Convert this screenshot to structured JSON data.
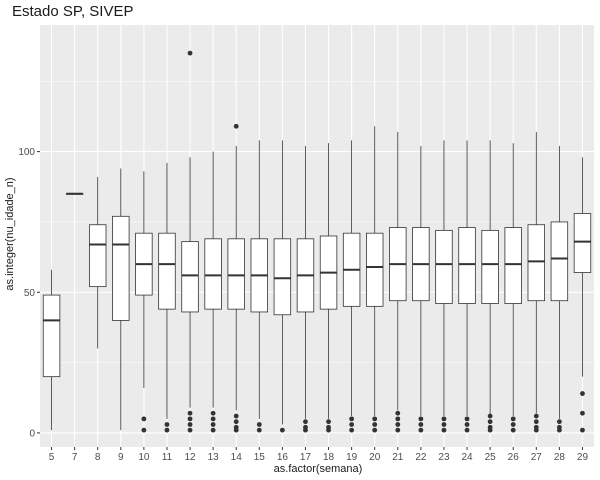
{
  "chart_data": {
    "type": "boxplot",
    "title": "Estado SP, SIVEP",
    "xlabel": "as.factor(semana)",
    "ylabel": "as.integer(nu_idade_n)",
    "ylim": [
      -5,
      145
    ],
    "y_ticks": [
      0,
      50,
      100
    ],
    "grid": true,
    "background": "#ebebeb",
    "colors": {
      "panel": "#ebebeb",
      "grid_major": "#ffffff",
      "box_fill": "#ffffff",
      "stroke": "#333333"
    },
    "categories": [
      "5",
      "7",
      "8",
      "9",
      "10",
      "11",
      "12",
      "13",
      "14",
      "15",
      "16",
      "17",
      "18",
      "19",
      "20",
      "21",
      "22",
      "23",
      "24",
      "25",
      "26",
      "27",
      "28",
      "29"
    ],
    "boxes": [
      {
        "x": "5",
        "lower": 1,
        "q1": 20,
        "median": 40,
        "q3": 49,
        "upper": 58,
        "outliers": []
      },
      {
        "x": "7",
        "lower": 85,
        "q1": 85,
        "median": 85,
        "q3": 85,
        "upper": 85,
        "outliers": []
      },
      {
        "x": "8",
        "lower": 30,
        "q1": 52,
        "median": 67,
        "q3": 74,
        "upper": 91,
        "outliers": []
      },
      {
        "x": "9",
        "lower": 1,
        "q1": 40,
        "median": 67,
        "q3": 77,
        "upper": 94,
        "outliers": []
      },
      {
        "x": "10",
        "lower": 16,
        "q1": 49,
        "median": 60,
        "q3": 71,
        "upper": 93,
        "outliers": [
          5,
          1
        ]
      },
      {
        "x": "11",
        "lower": 5,
        "q1": 44,
        "median": 60,
        "q3": 71,
        "upper": 96,
        "outliers": [
          3,
          1
        ]
      },
      {
        "x": "12",
        "lower": 9,
        "q1": 43,
        "median": 56,
        "q3": 68,
        "upper": 98,
        "outliers": [
          135,
          7,
          5,
          3,
          1
        ]
      },
      {
        "x": "13",
        "lower": 9,
        "q1": 44,
        "median": 56,
        "q3": 69,
        "upper": 100,
        "outliers": [
          7,
          5,
          3,
          1
        ]
      },
      {
        "x": "14",
        "lower": 8,
        "q1": 44,
        "median": 56,
        "q3": 69,
        "upper": 102,
        "outliers": [
          109,
          6,
          4,
          2,
          1
        ]
      },
      {
        "x": "15",
        "lower": 5,
        "q1": 43,
        "median": 56,
        "q3": 69,
        "upper": 104,
        "outliers": [
          3,
          1
        ]
      },
      {
        "x": "16",
        "lower": 3,
        "q1": 42,
        "median": 55,
        "q3": 69,
        "upper": 104,
        "outliers": [
          1
        ]
      },
      {
        "x": "17",
        "lower": 5,
        "q1": 43,
        "median": 56,
        "q3": 69,
        "upper": 102,
        "outliers": [
          4,
          2,
          1
        ]
      },
      {
        "x": "18",
        "lower": 5,
        "q1": 44,
        "median": 57,
        "q3": 70,
        "upper": 103,
        "outliers": [
          4,
          2,
          1
        ]
      },
      {
        "x": "19",
        "lower": 6,
        "q1": 45,
        "median": 58,
        "q3": 71,
        "upper": 104,
        "outliers": [
          5,
          3,
          1
        ]
      },
      {
        "x": "20",
        "lower": 6,
        "q1": 45,
        "median": 59,
        "q3": 71,
        "upper": 109,
        "outliers": [
          5,
          3,
          1
        ]
      },
      {
        "x": "21",
        "lower": 8,
        "q1": 47,
        "median": 60,
        "q3": 73,
        "upper": 107,
        "outliers": [
          7,
          5,
          3,
          1
        ]
      },
      {
        "x": "22",
        "lower": 6,
        "q1": 47,
        "median": 60,
        "q3": 73,
        "upper": 102,
        "outliers": [
          5,
          3,
          1
        ]
      },
      {
        "x": "23",
        "lower": 6,
        "q1": 46,
        "median": 60,
        "q3": 72,
        "upper": 104,
        "outliers": [
          5,
          3,
          1
        ]
      },
      {
        "x": "24",
        "lower": 6,
        "q1": 46,
        "median": 60,
        "q3": 73,
        "upper": 104,
        "outliers": [
          5,
          3,
          1
        ]
      },
      {
        "x": "25",
        "lower": 6,
        "q1": 46,
        "median": 60,
        "q3": 72,
        "upper": 104,
        "outliers": [
          6,
          4,
          2,
          1
        ]
      },
      {
        "x": "26",
        "lower": 6,
        "q1": 46,
        "median": 60,
        "q3": 73,
        "upper": 103,
        "outliers": [
          5,
          3,
          1
        ]
      },
      {
        "x": "27",
        "lower": 7,
        "q1": 47,
        "median": 61,
        "q3": 74,
        "upper": 107,
        "outliers": [
          6,
          4,
          2,
          1
        ]
      },
      {
        "x": "28",
        "lower": 5,
        "q1": 47,
        "median": 62,
        "q3": 75,
        "upper": 102,
        "outliers": [
          4,
          2,
          1
        ]
      },
      {
        "x": "29",
        "lower": 20,
        "q1": 57,
        "median": 68,
        "q3": 78,
        "upper": 98,
        "outliers": [
          14,
          7,
          1
        ]
      }
    ]
  }
}
